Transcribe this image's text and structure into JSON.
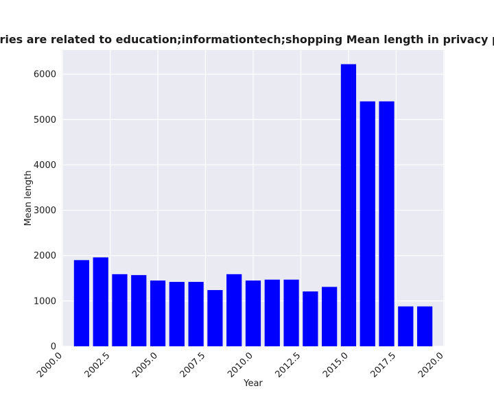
{
  "chart_data": {
    "type": "bar",
    "title": "categories are related to education;informationtech;shopping Mean length in privacy policies",
    "xlabel": "Year",
    "ylabel": "Mean length",
    "x": [
      2001,
      2002,
      2003,
      2004,
      2005,
      2006,
      2007,
      2008,
      2009,
      2010,
      2011,
      2012,
      2013,
      2014,
      2015,
      2016,
      2017,
      2018,
      2019
    ],
    "values": [
      1900,
      1960,
      1590,
      1570,
      1450,
      1420,
      1420,
      1240,
      1590,
      1450,
      1470,
      1470,
      1210,
      1310,
      6220,
      5400,
      5400,
      880,
      880
    ],
    "xlim": [
      1999.96,
      2020.04
    ],
    "ylim": [
      0,
      6531
    ],
    "xticks": [
      2000.0,
      2002.5,
      2005.0,
      2007.5,
      2010.0,
      2012.5,
      2015.0,
      2017.5,
      2020.0
    ],
    "xtick_labels": [
      "2000.0",
      "2002.5",
      "2005.0",
      "2007.5",
      "2010.0",
      "2012.5",
      "2015.0",
      "2017.5",
      "2020.0"
    ],
    "yticks": [
      0,
      1000,
      2000,
      3000,
      4000,
      5000,
      6000
    ],
    "ytick_labels": [
      "0",
      "1000",
      "2000",
      "3000",
      "4000",
      "5000",
      "6000"
    ],
    "bar_color": "#0000ff",
    "background_color": "#eaeaf2",
    "grid": true,
    "legend": "none"
  }
}
